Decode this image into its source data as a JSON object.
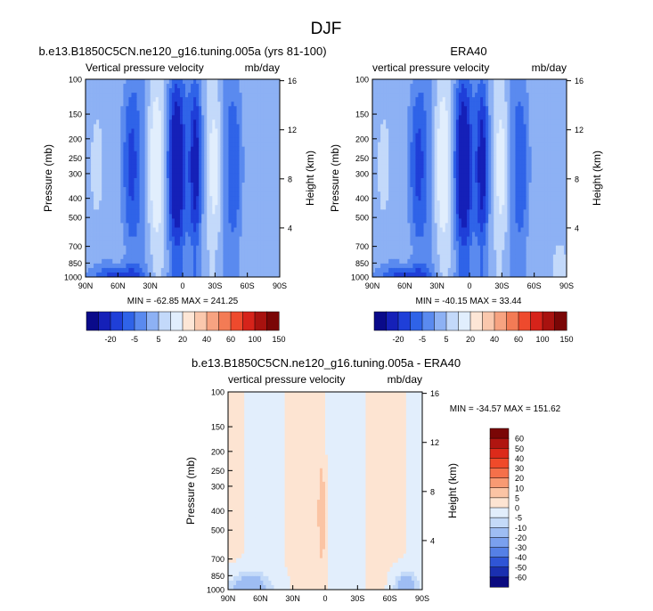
{
  "page": {
    "title": "DJF"
  },
  "chart_data": [
    {
      "type": "heatmap",
      "title": "b.e13.B1850C5CN.ne120_g16.tuning.005a (yrs 81-100)",
      "field_label": "Vertical pressure velocity",
      "units": "mb/day",
      "xlabel": "",
      "ylabel": "Pressure (mb)",
      "ylabel_right": "Height (km)",
      "x_tick_labels": [
        "90N",
        "60N",
        "30N",
        "0",
        "30S",
        "60S",
        "90S"
      ],
      "y_tick_labels": [
        "100",
        "150",
        "200",
        "250",
        "300",
        "400",
        "500",
        "700",
        "850",
        "1000"
      ],
      "y_right_tick_labels": [
        "16",
        "12",
        "8",
        "4"
      ],
      "stats": "MIN = -62.85  MAX = 241.25",
      "colorbar_labels": [
        "-20",
        "-5",
        "5",
        "20",
        "40",
        "60",
        "100",
        "150"
      ],
      "colorbar_colors": [
        "#0a0a8a",
        "#1520b8",
        "#1f3fd8",
        "#2f63e8",
        "#5a8aef",
        "#8db1f4",
        "#c3d9fa",
        "#e1eefd",
        "#fde6d6",
        "#fac8ad",
        "#f7a381",
        "#f37b55",
        "#ee4a2d",
        "#d6231a",
        "#a8120f",
        "#7a0606"
      ],
      "pattern": "model"
    },
    {
      "type": "heatmap",
      "title": "ERA40",
      "field_label": "vertical pressure velocity",
      "units": "mb/day",
      "xlabel": "",
      "ylabel": "Pressure (mb)",
      "ylabel_right": "Height (km)",
      "x_tick_labels": [
        "90N",
        "60N",
        "30N",
        "0",
        "30S",
        "60S",
        "90S"
      ],
      "y_tick_labels": [
        "100",
        "150",
        "200",
        "250",
        "300",
        "400",
        "500",
        "700",
        "850",
        "1000"
      ],
      "y_right_tick_labels": [
        "16",
        "12",
        "8",
        "4"
      ],
      "stats": "MIN = -40.15  MAX = 33.44",
      "colorbar_labels": [
        "-20",
        "-5",
        "5",
        "20",
        "40",
        "60",
        "100",
        "150"
      ],
      "colorbar_colors": [
        "#0a0a8a",
        "#1520b8",
        "#1f3fd8",
        "#2f63e8",
        "#5a8aef",
        "#8db1f4",
        "#c3d9fa",
        "#e1eefd",
        "#fde6d6",
        "#fac8ad",
        "#f7a381",
        "#f37b55",
        "#ee4a2d",
        "#d6231a",
        "#a8120f",
        "#7a0606"
      ],
      "pattern": "obs"
    },
    {
      "type": "heatmap",
      "title": "b.e13.B1850C5CN.ne120_g16.tuning.005a - ERA40",
      "field_label": "vertical pressure velocity",
      "units": "mb/day",
      "xlabel": "",
      "ylabel": "Pressure (mb)",
      "ylabel_right": "Height (km)",
      "x_tick_labels": [
        "90N",
        "60N",
        "30N",
        "0",
        "30S",
        "60S",
        "90S"
      ],
      "y_tick_labels": [
        "100",
        "150",
        "200",
        "250",
        "300",
        "400",
        "500",
        "700",
        "850",
        "1000"
      ],
      "y_right_tick_labels": [
        "16",
        "12",
        "8",
        "4"
      ],
      "stats": "MIN = -34.57  MAX = 151.62",
      "colorbar_labels": [
        "60",
        "50",
        "40",
        "30",
        "20",
        "10",
        "5",
        "0",
        "-5",
        "-10",
        "-20",
        "-30",
        "-40",
        "-50",
        "-60"
      ],
      "colorbar_colors": [
        "#7a0606",
        "#b01510",
        "#dc2a1a",
        "#f04a2a",
        "#f5704a",
        "#f89a73",
        "#fbc4a4",
        "#fde4d2",
        "#e2eefc",
        "#c4daf8",
        "#9ebdf3",
        "#7aa0ee",
        "#5580e6",
        "#2f55d6",
        "#1a2fb0",
        "#0a0a80"
      ],
      "pattern": "diff"
    }
  ]
}
